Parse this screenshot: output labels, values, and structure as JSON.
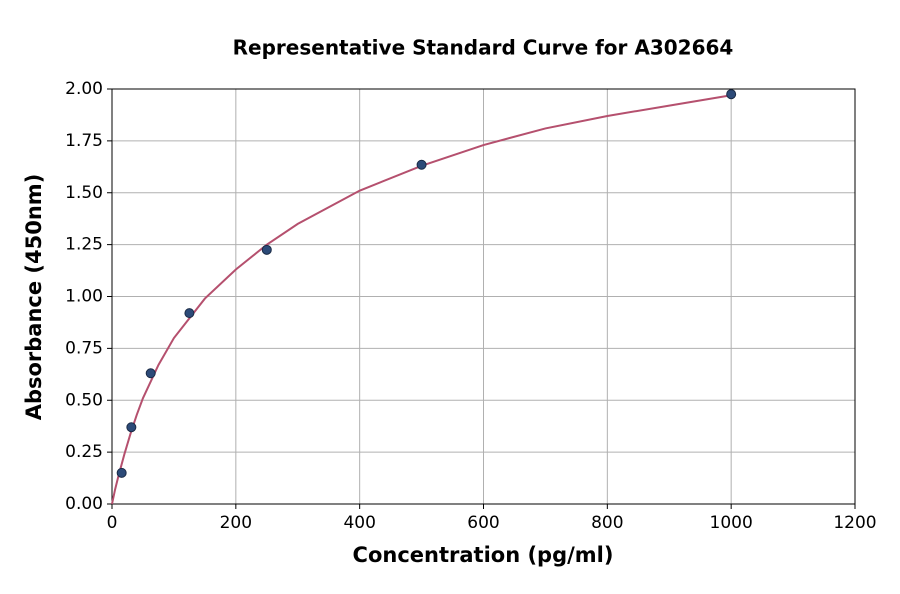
{
  "chart_data": {
    "type": "scatter",
    "title": "Representative Standard Curve for A302664",
    "xlabel": "Concentration (pg/ml)",
    "ylabel": "Absorbance (450nm)",
    "points": {
      "color": "#2c4a78",
      "x": [
        15.6,
        31.25,
        62.5,
        125,
        250,
        500,
        1000
      ],
      "values": [
        0.15,
        0.37,
        0.63,
        0.92,
        1.225,
        1.635,
        1.975
      ]
    },
    "curve": {
      "color": "#b5506e",
      "x": [
        0,
        5,
        10,
        20,
        30,
        40,
        50,
        75,
        100,
        150,
        200,
        250,
        300,
        400,
        500,
        600,
        700,
        800,
        900,
        1000
      ],
      "values": [
        0,
        0.07,
        0.13,
        0.24,
        0.34,
        0.43,
        0.51,
        0.67,
        0.8,
        0.99,
        1.13,
        1.25,
        1.35,
        1.51,
        1.63,
        1.73,
        1.81,
        1.87,
        1.92,
        1.97
      ]
    },
    "xlim": [
      0,
      1200
    ],
    "xticks": [
      0,
      200,
      400,
      600,
      800,
      1000,
      1200
    ],
    "ylim": [
      0,
      2
    ],
    "yticks": [
      {
        "value": 0,
        "label": "0.00"
      },
      {
        "value": 0.25,
        "label": "0.25"
      },
      {
        "value": 0.5,
        "label": "0.50"
      },
      {
        "value": 0.75,
        "label": "0.75"
      },
      {
        "value": 1,
        "label": "1.00"
      },
      {
        "value": 1.25,
        "label": "1.25"
      },
      {
        "value": 1.5,
        "label": "1.50"
      },
      {
        "value": 1.75,
        "label": "1.75"
      },
      {
        "value": 2,
        "label": "2.00"
      }
    ],
    "grid": true
  }
}
